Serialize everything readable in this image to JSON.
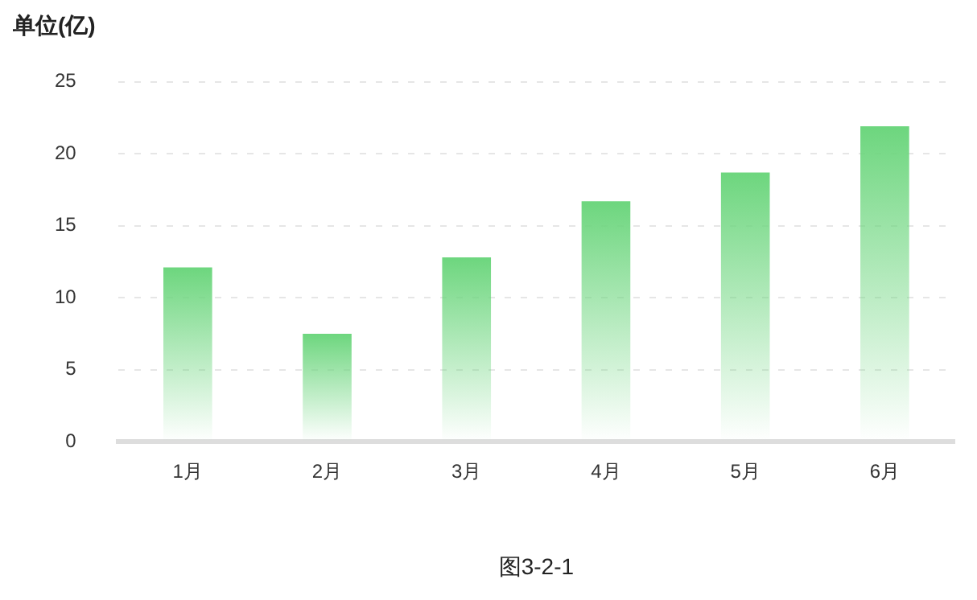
{
  "chart_data": {
    "type": "bar",
    "ylabel": "单位(亿)",
    "categories": [
      "1月",
      "2月",
      "3月",
      "4月",
      "5月",
      "6月"
    ],
    "values": [
      12.1,
      7.5,
      12.8,
      16.7,
      18.7,
      21.9
    ],
    "color": "#6dd67e",
    "ylim": [
      0,
      25
    ],
    "yticks": [
      0,
      5,
      10,
      15,
      20,
      25
    ],
    "grid": "y",
    "annotations": [
      "图3-2-1"
    ]
  }
}
